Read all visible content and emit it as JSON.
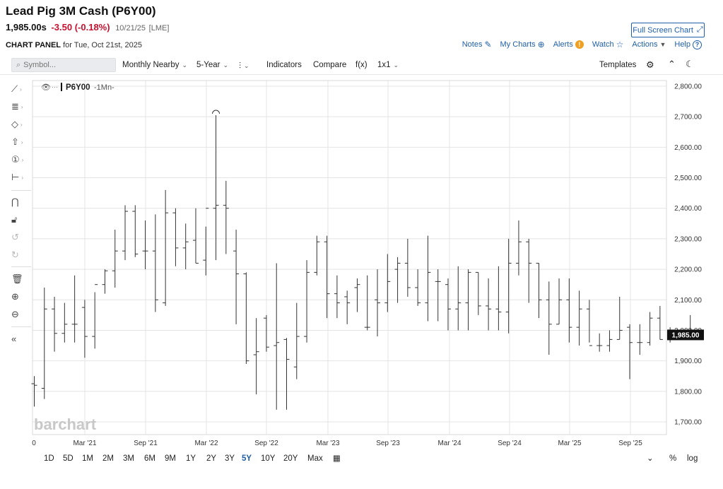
{
  "header": {
    "title": "Lead Pig 3M Cash (P6Y00)",
    "last": "1,985.00s",
    "change": "-3.50 (-0.18%)",
    "date": "10/21/25",
    "exchange": "[LME]",
    "fullscreen_label": "Full Screen Chart"
  },
  "panel": {
    "label": "CHART PANEL",
    "for_date": "for Tue, Oct 21st, 2025"
  },
  "actions": {
    "notes": "Notes",
    "my_charts": "My Charts",
    "alerts": "Alerts",
    "watch": "Watch",
    "actions_label": "Actions",
    "help": "Help"
  },
  "toolbar": {
    "search_placeholder": "Symbol...",
    "frequency": "Monthly Nearby",
    "period": "5-Year",
    "indicators": "Indicators",
    "compare": "Compare",
    "fx": "f(x)",
    "layout": "1x1",
    "templates": "Templates"
  },
  "chart_legend": {
    "symbol": "P6Y00",
    "interval": "-1Mn-"
  },
  "watermark": "barchart",
  "bottom_bar": {
    "ranges": [
      "1D",
      "5D",
      "1M",
      "2M",
      "3M",
      "6M",
      "9M",
      "1Y",
      "2Y",
      "3Y",
      "5Y",
      "10Y",
      "20Y",
      "Max"
    ],
    "active_range": "5Y",
    "percent": "%",
    "log": "log"
  },
  "chart_data": {
    "type": "ohlc",
    "xlabels": [
      "0",
      "Mar '21",
      "Sep '21",
      "Mar '22",
      "Sep '22",
      "Mar '23",
      "Sep '23",
      "Mar '24",
      "Sep '24",
      "Mar '25",
      "Sep '25"
    ],
    "ytick_labels": [
      "1,700.00",
      "1,800.00",
      "1,900.00",
      "2,000.00",
      "2,100.00",
      "2,200.00",
      "2,300.00",
      "2,400.00",
      "2,500.00",
      "2,600.00",
      "2,700.00",
      "2,800.00"
    ],
    "ylim": [
      1660,
      2830
    ],
    "last_price_label": "1,985.00",
    "last_price": 1985,
    "high_marker": 2705,
    "low_marker": 1738,
    "bars": [
      [
        1825,
        1850,
        1750,
        1820
      ],
      [
        1810,
        2140,
        1775,
        2070
      ],
      [
        2070,
        2110,
        1930,
        1990
      ],
      [
        1990,
        2090,
        1960,
        2020
      ],
      [
        2020,
        2180,
        1960,
        2020
      ],
      [
        2075,
        2100,
        1910,
        1980
      ],
      [
        1980,
        2125,
        1940,
        2150
      ],
      [
        2150,
        2200,
        2120,
        2195
      ],
      [
        2195,
        2330,
        2140,
        2260
      ],
      [
        2260,
        2410,
        2230,
        2390
      ],
      [
        2390,
        2410,
        2240,
        2250
      ],
      [
        2260,
        2360,
        2200,
        2260
      ],
      [
        2260,
        2380,
        2060,
        2100
      ],
      [
        2090,
        2460,
        2080,
        2385
      ],
      [
        2385,
        2400,
        2210,
        2270
      ],
      [
        2270,
        2350,
        2200,
        2290
      ],
      [
        2295,
        2400,
        2220,
        2220
      ],
      [
        2230,
        2340,
        2180,
        2400
      ],
      [
        2400,
        2705,
        2230,
        2410
      ],
      [
        2410,
        2490,
        2250,
        2400
      ],
      [
        2260,
        2330,
        2020,
        2185
      ],
      [
        2185,
        2190,
        1890,
        1900
      ],
      [
        1920,
        2040,
        1790,
        1930
      ],
      [
        2040,
        2050,
        1930,
        1945
      ],
      [
        1950,
        2220,
        1740,
        1960
      ],
      [
        1970,
        1975,
        1740,
        1905
      ],
      [
        1880,
        2090,
        1840,
        1980
      ],
      [
        1980,
        2230,
        1960,
        2190
      ],
      [
        2190,
        2310,
        2180,
        2290
      ],
      [
        2290,
        2310,
        2040,
        2120
      ],
      [
        2120,
        2180,
        2040,
        2090
      ],
      [
        2110,
        2130,
        2020,
        2090
      ],
      [
        2140,
        2170,
        2060,
        2150
      ],
      [
        2010,
        2180,
        2000,
        2010
      ],
      [
        2100,
        2200,
        1980,
        2090
      ],
      [
        2090,
        2250,
        2060,
        2160
      ],
      [
        2200,
        2240,
        2090,
        2220
      ],
      [
        2220,
        2300,
        2110,
        2140
      ],
      [
        2140,
        2200,
        2080,
        2090
      ],
      [
        2090,
        2310,
        2030,
        2190
      ],
      [
        2160,
        2200,
        2030,
        2160
      ],
      [
        2150,
        2170,
        2000,
        2070
      ],
      [
        2070,
        2210,
        2000,
        2090
      ],
      [
        2090,
        2200,
        2000,
        2190
      ],
      [
        2190,
        2190,
        2050,
        2080
      ],
      [
        2080,
        2170,
        2000,
        2070
      ],
      [
        2070,
        2210,
        2000,
        2060
      ],
      [
        2060,
        2300,
        1990,
        2220
      ],
      [
        2220,
        2360,
        2180,
        2290
      ],
      [
        2290,
        2300,
        2090,
        2220
      ],
      [
        2220,
        2220,
        2040,
        2100
      ],
      [
        2100,
        2160,
        1920,
        2020
      ],
      [
        2020,
        2170,
        2020,
        2100
      ],
      [
        2100,
        2170,
        1960,
        2010
      ],
      [
        2010,
        2130,
        1950,
        2070
      ],
      [
        2070,
        2100,
        1960,
        1950
      ],
      [
        1950,
        1990,
        1930,
        1950
      ],
      [
        1950,
        2000,
        1930,
        1970
      ],
      [
        1970,
        2110,
        1970,
        2000
      ],
      [
        2010,
        2020,
        1840,
        1960
      ],
      [
        1960,
        2020,
        1920,
        1960
      ],
      [
        1960,
        2060,
        1950,
        2040
      ],
      [
        2040,
        2080,
        1970,
        1970
      ],
      [
        1970,
        2010,
        1960,
        1990
      ],
      [
        1990,
        2000,
        1970,
        1980
      ],
      [
        1990,
        2050,
        1970,
        1985
      ]
    ]
  }
}
